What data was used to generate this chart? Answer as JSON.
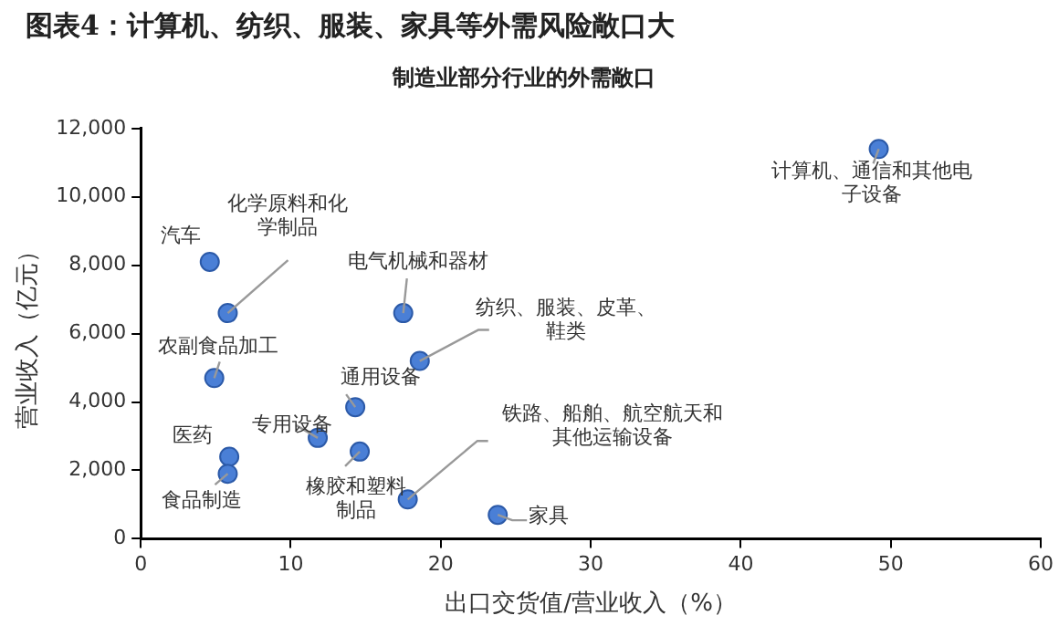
{
  "chart_data": {
    "type": "scatter",
    "title": "图表4：计算机、纺织、服装、家具等外需风险敞口大",
    "subtitle": "制造业部分行业的外需敞口",
    "xlabel": "出口交货值/营业收入（%）",
    "ylabel": "营业收入（亿元）",
    "series": [
      {
        "color": "#4a7fd6",
        "x": [
          4.6,
          5.8,
          17.5,
          18.6,
          4.9,
          14.3,
          11.8,
          14.6,
          5.9,
          5.8,
          17.8,
          23.8,
          49.2
        ],
        "values": [
          8100,
          6600,
          6600,
          5200,
          4700,
          3850,
          2950,
          2550,
          2400,
          1900,
          1150,
          700,
          11400
        ]
      }
    ],
    "annotations": [
      {
        "text": "汽车",
        "x": 4.6,
        "y": 8100
      },
      {
        "text": "化学原料和化学制品",
        "x": 5.8,
        "y": 6600
      },
      {
        "text": "电气机械和器材",
        "x": 17.5,
        "y": 6600
      },
      {
        "text": "纺织、服装、皮革、鞋类",
        "x": 18.6,
        "y": 5200
      },
      {
        "text": "农副食品加工",
        "x": 4.9,
        "y": 4700
      },
      {
        "text": "通用设备",
        "x": 14.3,
        "y": 3850
      },
      {
        "text": "专用设备",
        "x": 11.8,
        "y": 2950
      },
      {
        "text": "橡胶和塑料制品",
        "x": 14.6,
        "y": 2550
      },
      {
        "text": "医药",
        "x": 5.9,
        "y": 2400
      },
      {
        "text": "食品制造",
        "x": 5.8,
        "y": 1900
      },
      {
        "text": "铁路、船舶、航空航天和其他运输设备",
        "x": 17.8,
        "y": 1150
      },
      {
        "text": "家具",
        "x": 23.8,
        "y": 700
      },
      {
        "text": "计算机、通信和其他电子设备",
        "x": 49.2,
        "y": 11400
      }
    ],
    "xlim": [
      0,
      60
    ],
    "xticks": [
      0,
      10,
      20,
      30,
      40,
      50,
      60
    ],
    "ylim": [
      0,
      12000
    ],
    "yticks": [
      0,
      {
        "value": 2000,
        "label": "2,000"
      },
      {
        "value": 4000,
        "label": "4,000"
      },
      {
        "value": 6000,
        "label": "6,000"
      },
      {
        "value": 8000,
        "label": "8,000"
      },
      {
        "value": 10000,
        "label": "10,000"
      },
      {
        "value": 12000,
        "label": "12,000"
      }
    ],
    "grid": false,
    "legend": false,
    "marker": "circle"
  }
}
